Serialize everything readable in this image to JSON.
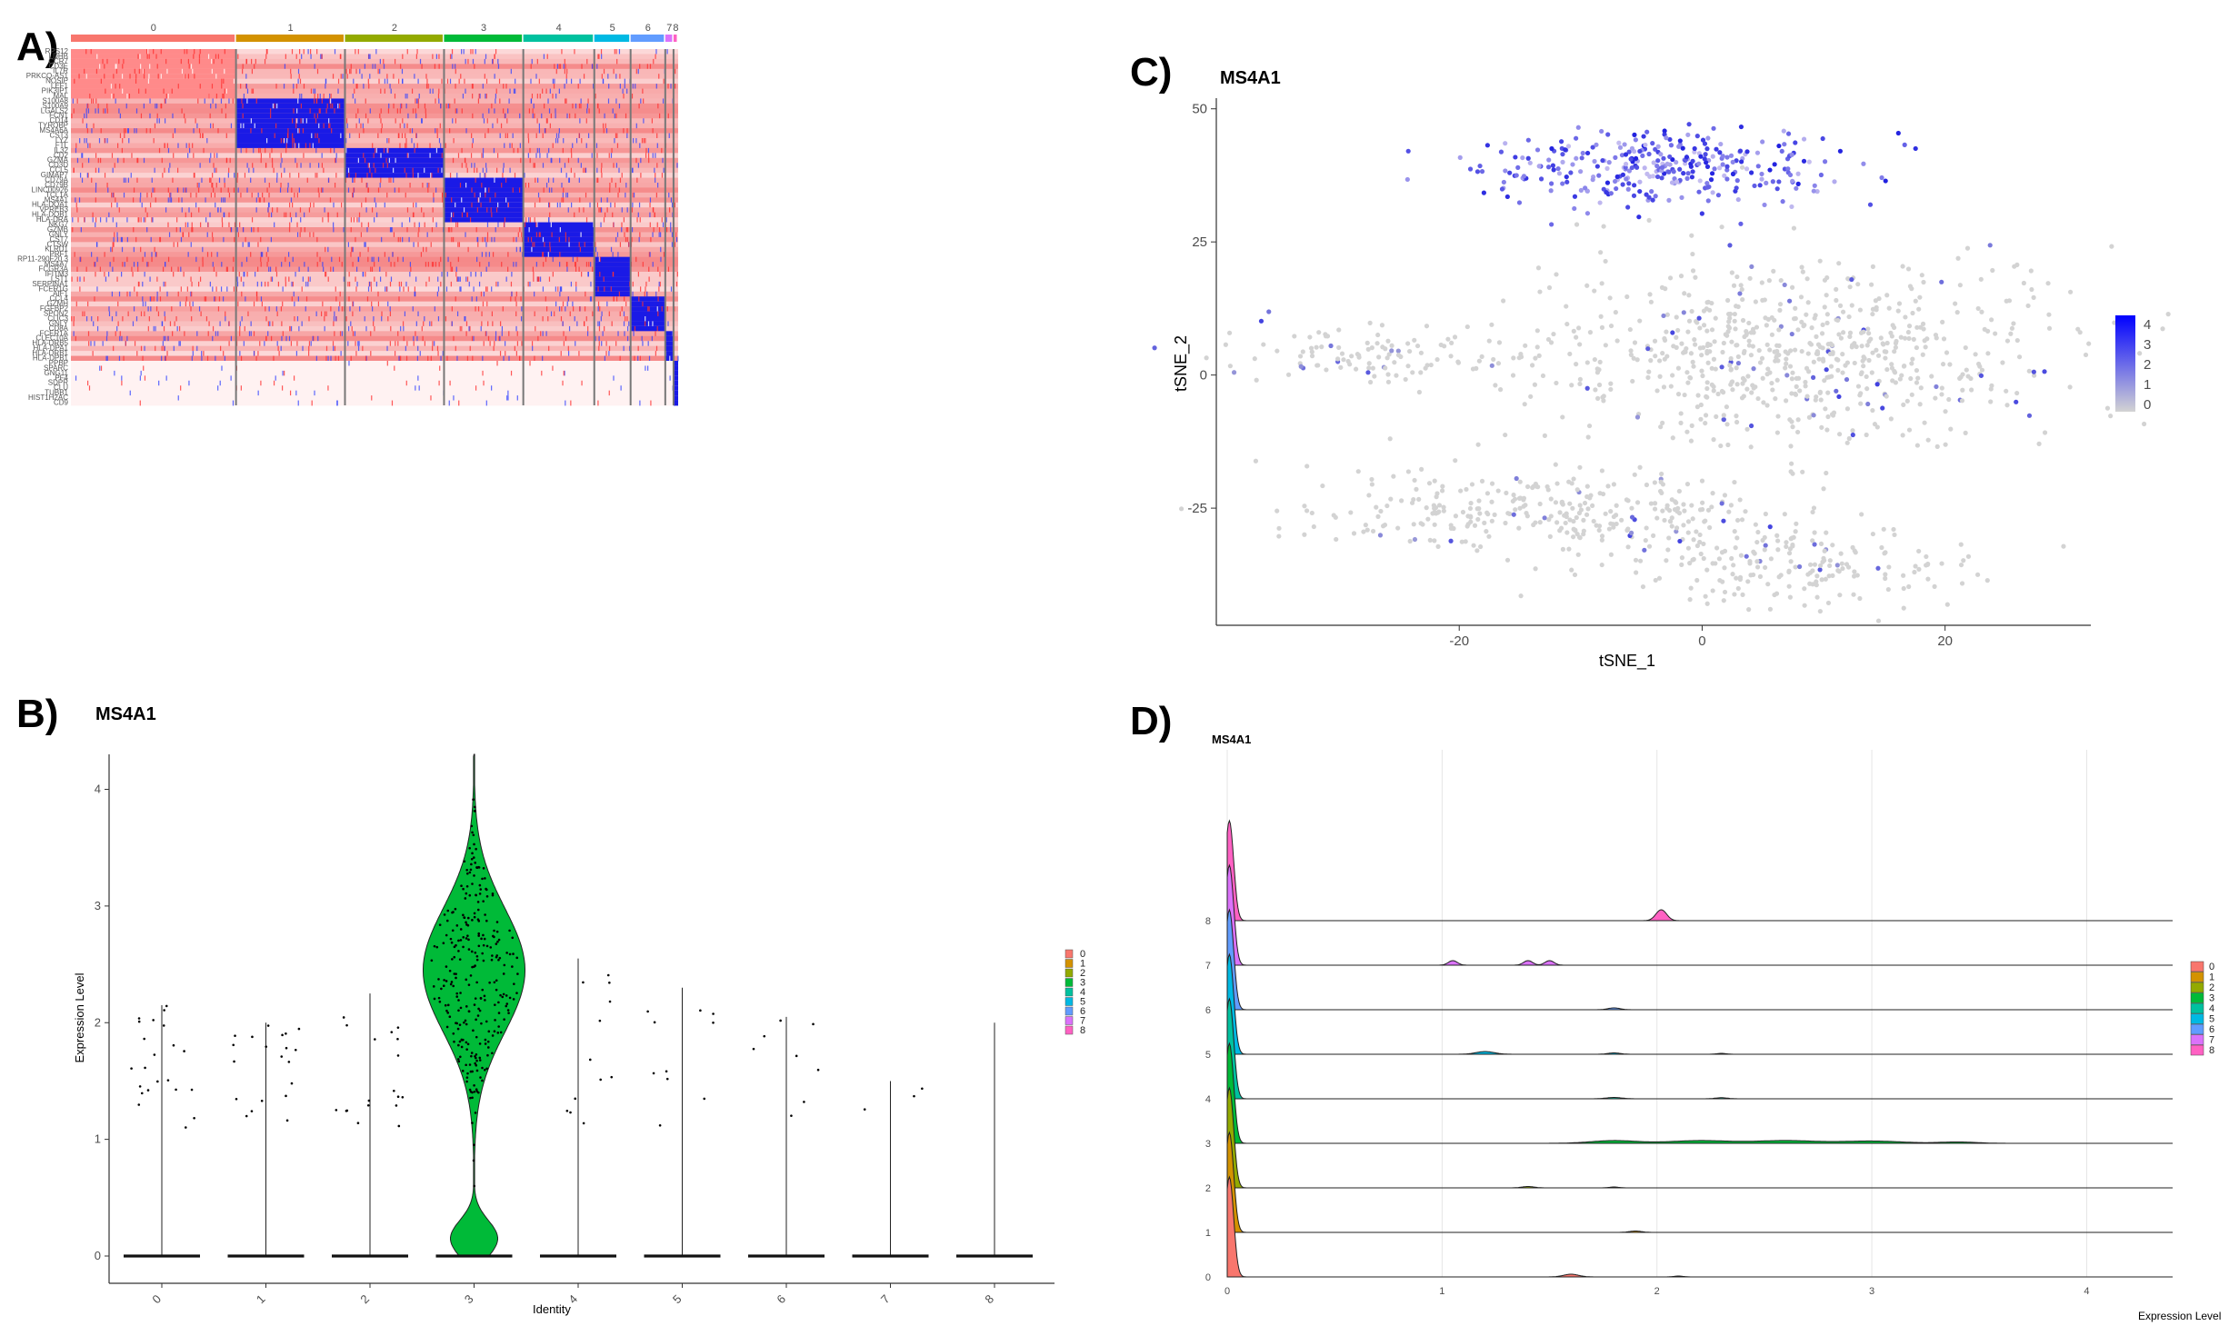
{
  "panels": {
    "a": {
      "letter": "A)"
    },
    "b": {
      "letter": "B)",
      "title": "MS4A1"
    },
    "c": {
      "letter": "C)",
      "title": "MS4A1"
    },
    "d": {
      "letter": "D)",
      "title": "MS4A1"
    }
  },
  "cluster_colors": [
    "#F8766D",
    "#D39200",
    "#93AA00",
    "#00BA38",
    "#00C19F",
    "#00B9E3",
    "#619CFF",
    "#DB72FB",
    "#FF61C3"
  ],
  "chart_data": [
    {
      "type": "heatmap",
      "panel": "A",
      "clusters": [
        {
          "name": "0",
          "cells": 500
        },
        {
          "name": "1",
          "cells": 330
        },
        {
          "name": "2",
          "cells": 300
        },
        {
          "name": "3",
          "cells": 240
        },
        {
          "name": "4",
          "cells": 215
        },
        {
          "name": "5",
          "cells": 110
        },
        {
          "name": "6",
          "cells": 105
        },
        {
          "name": "7",
          "cells": 25
        },
        {
          "name": "8",
          "cells": 14
        }
      ],
      "genes": [
        "RPS12",
        "LDHB",
        "CCR7",
        "CD3E",
        "IL7R",
        "PRKCQ-AS1",
        "NOSIP",
        "LEF1",
        "PIK3IP1",
        "MAL",
        "S100A8",
        "S100A9",
        "LGALS2",
        "FCN1",
        "CD14",
        "TYROBP",
        "MS4A6A",
        "CST3",
        "LYZ",
        "FTL",
        "IL32",
        "CD2",
        "GZMA",
        "CD3D",
        "CCL5",
        "GIMAP7",
        "CD79A",
        "CD79B",
        "LINC00926",
        "TCL1A",
        "MS4A1",
        "HLA-DQA1",
        "VPREB3",
        "HLA-DQB1",
        "HLA-DRA",
        "NKG7",
        "GZMB",
        "GNLY",
        "CST7",
        "CTSW",
        "KLRD1",
        "PRF1",
        "RP11-290F20.3",
        "MS4A7",
        "FCGR3A",
        "IFITM3",
        "LST1",
        "SERPINA1",
        "FCER1G",
        "AIF1",
        "CCL4",
        "GZMH",
        "FGFBP2",
        "SPON2",
        "CLIC3",
        "GNLY",
        "CD8A",
        "FCER1A",
        "CLEC10A",
        "HLA-DRB5",
        "HLA-DPA1",
        "HLA-DRB1",
        "HLA-DPB1",
        "PPBP",
        "SPARC",
        "GNG11",
        "PF4",
        "SDPR",
        "CLU",
        "TUBB1",
        "HIST1H2AC",
        "CD9"
      ],
      "colors": {
        "low": "#FF0000",
        "mid": "#FFFFFF",
        "high": "#0000FF"
      }
    },
    {
      "type": "violin",
      "panel": "B",
      "title": "MS4A1",
      "xlabel": "Identity",
      "ylabel": "Expression Level",
      "categories": [
        "0",
        "1",
        "2",
        "3",
        "4",
        "5",
        "6",
        "7",
        "8"
      ],
      "ylim": [
        0,
        4.3
      ],
      "yticks": [
        0,
        1,
        2,
        3,
        4
      ],
      "max_expression": [
        2.15,
        2.0,
        2.25,
        4.3,
        2.55,
        2.3,
        2.05,
        1.5,
        2.0
      ],
      "legend": [
        "0",
        "1",
        "2",
        "3",
        "4",
        "5",
        "6",
        "7",
        "8"
      ]
    },
    {
      "type": "scatter",
      "panel": "C",
      "title": "MS4A1",
      "xlabel": "tSNE_1",
      "ylabel": "tSNE_2",
      "xlim": [
        -40,
        32
      ],
      "ylim": [
        -47,
        52
      ],
      "xticks": [
        -20,
        0,
        20
      ],
      "yticks": [
        50,
        25,
        0,
        -25
      ],
      "legend_scale": [
        4,
        3,
        2,
        1,
        0
      ],
      "colors": {
        "low": "#D3D3D3",
        "high": "#0000FF"
      }
    },
    {
      "type": "ridgeline",
      "panel": "D",
      "title": "MS4A1",
      "xlabel": "Expression Level",
      "categories": [
        "0",
        "1",
        "2",
        "3",
        "4",
        "5",
        "6",
        "7",
        "8"
      ],
      "xlim": [
        0,
        4.4
      ],
      "xticks": [
        0,
        1,
        2,
        3,
        4
      ],
      "legend": [
        "0",
        "1",
        "2",
        "3",
        "4",
        "5",
        "6",
        "7",
        "8"
      ]
    }
  ]
}
